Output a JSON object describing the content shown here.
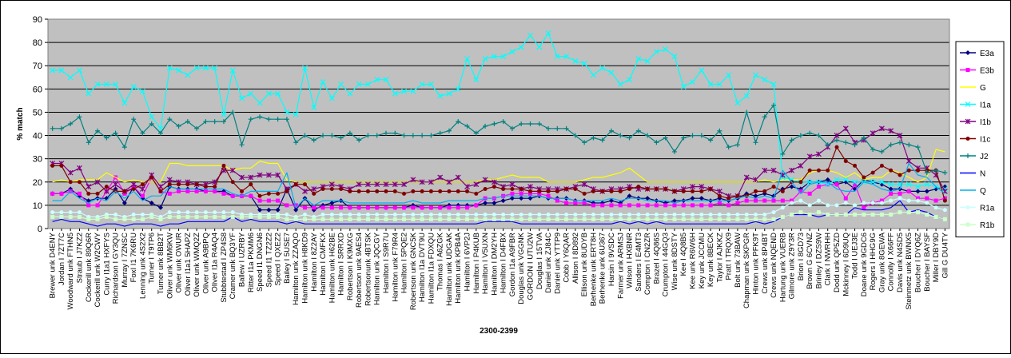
{
  "chart_data": {
    "type": "line",
    "xlabel": "2300-2399",
    "ylabel": "% match",
    "ylim": [
      0,
      90
    ],
    "yticks": [
      "0",
      "10",
      "20",
      "30",
      "40",
      "50",
      "60",
      "70",
      "80",
      "90"
    ],
    "grid": true,
    "legend_position": "right",
    "plot_background": "#c0c0c0",
    "categories": [
      "Brewer unk D4ENY",
      "Jordan I 7ZT7C",
      "Woodward unk FTHN5",
      "Straub I J7KZ2",
      "Cockerill unk 89Q6R",
      "Cockerill unk W2CWY",
      "Curry I1a1 HXFYS",
      "Richardson I GY3QU",
      "Murray I 7ZNSC",
      "FoxI I1 7K6RU",
      "Lenning unk 4S2X2",
      "Turner I T9TP6",
      "Turner unk 8BB2T",
      "Oliver unk WM6KW",
      "Oliver unk OWUR",
      "Oliver I1a1 5HAPZ",
      "Oliver unk WMQ2Z",
      "Oliver unk A9BPQ",
      "Oliver I1a R4AQ4",
      "Stubbtestad I ZP4S8",
      "Cramer unk BQ3YF",
      "Ballew I UZRBY",
      "Ritter I1a PKMM6",
      "Speed I1 DNGN6",
      "Speed I1 TZ2Z2",
      "Speed I QXEZ2",
      "Bailey I 5USE7",
      "Hamilton unk ZZAQO",
      "Hamilton unk H8KD9",
      "Hamilton I 8Z2AY",
      "Hamilton I CMFKX",
      "Hamilton unk H62BE",
      "Hamilton I SRRXD",
      "Robertson I K9MXG",
      "Robertson unk 9AES4",
      "Robertsonunk 4BTSK",
      "Hamilton unk JQCGY",
      "Hamilton I S9R7U",
      "Hamilton unk F79R4",
      "Hamilton I 5PQE2",
      "Robertson unk GNC5K",
      "Hamilton I1a DVT9U",
      "Hamilton I1a FDXQU",
      "Thomas I A6ZGK",
      "Hamilton unk UDGAK",
      "Hamilton unk KPB4A",
      "Hamilton I 6VP2J",
      "Hamilton I P4KUB",
      "Hamilton I V5UXN",
      "Hamilton I DM2YH",
      "Hamilton I D4FBX",
      "Gordon I1a A9FBR",
      "Douglas unk VGGNK",
      "GORDON I UTU2W",
      "Douglas I 15TVA",
      "Daniel unk ZJ84C",
      "Daniel unk YTTP9",
      "Cobb I Y6QAR",
      "Allison I 8D892",
      "Ellison unk 8UDYB",
      "Berhenke unk ERT8H",
      "Berhenke unk 6U367",
      "Harsin I 9VSDC",
      "Farmer unk ARMSJ",
      "Wilson I HXBNR",
      "Sanders I E4MT3",
      "Compton I CN2ZR",
      "Brazel I 4Q86S",
      "Crumpton I 44GQ3",
      "Wise unk 8DSTY",
      "Kee I 4Q8B5",
      "Kee unk R6W6H",
      "Key unk JCCMU",
      "Key unk 8BECK",
      "Taylor I AJKKZ",
      "Pratt I TRQX9",
      "Bolt unk 73BAW",
      "Chapman unk SKPGR",
      "Hinton unk PFK9T",
      "Crews unk 8P4BT",
      "Crews unk NQEND",
      "Hartung unk VUERB",
      "Gilmore unk Z9Y3R",
      "Brion I 8GD73",
      "Brown G 6CVNZ",
      "Brinley I DZS9W",
      "Clark I NWRHH",
      "Dodd unk QP5ZD",
      "Mckinney I 6D9UQ",
      "Todd I UEJ3E",
      "Doane unk 9GDC6",
      "Rogers I HHG9G",
      "Gray unk 8GEWA",
      "Connolly I X66FF",
      "Davis unk N4SD5",
      "Steinmetz unk BWNX5",
      "Boucher I DYQ6Z",
      "Boucher I BAYSF",
      "Miller I DBY9D",
      "Gill G DU4TY"
    ],
    "series": [
      {
        "name": "E3a",
        "color": "#000080",
        "marker": "diamond",
        "values": [
          15,
          15,
          17,
          14,
          12,
          13,
          13,
          17,
          11,
          18,
          13,
          11,
          9,
          18,
          17,
          17,
          17,
          16,
          16,
          16,
          14,
          14,
          14,
          8,
          8,
          8,
          17,
          8,
          13,
          8,
          10,
          11,
          12,
          9,
          9,
          9,
          9,
          9,
          9,
          9,
          10,
          9,
          9,
          9,
          10,
          10,
          10,
          10,
          11,
          11,
          12,
          13,
          13,
          13,
          14,
          13,
          13,
          13,
          12,
          12,
          11,
          11,
          12,
          11,
          14,
          13,
          13,
          12,
          11,
          12,
          12,
          13,
          13,
          12,
          13,
          12,
          13,
          15,
          14,
          15,
          14,
          17,
          18,
          17,
          20,
          20,
          21,
          19,
          20,
          17,
          21,
          20,
          19,
          17,
          17,
          16,
          16,
          16,
          17,
          18
        ]
      },
      {
        "name": "E3b",
        "color": "#ff00ff",
        "marker": "square",
        "values": [
          15,
          15,
          16,
          15,
          10,
          10,
          16,
          22,
          15,
          18,
          14,
          22,
          16,
          15,
          16,
          16,
          16,
          16,
          16,
          15,
          14,
          14,
          14,
          12,
          12,
          12,
          10,
          10,
          9,
          9,
          9,
          9,
          9,
          9,
          9,
          9,
          9,
          9,
          9,
          9,
          9,
          9,
          9,
          9,
          9,
          9,
          9,
          10,
          13,
          13,
          14,
          15,
          15,
          15,
          15,
          14,
          12,
          11,
          11,
          11,
          10,
          10,
          10,
          10,
          10,
          10,
          10,
          10,
          10,
          10,
          10,
          10,
          10,
          10,
          11,
          10,
          11,
          12,
          12,
          12,
          12,
          12,
          12,
          16,
          15,
          18,
          19,
          19,
          13,
          19,
          9,
          11,
          12,
          15,
          15,
          16,
          13,
          13,
          12,
          13
        ]
      },
      {
        "name": "G",
        "color": "#ffff00",
        "marker": "none",
        "values": [
          20,
          21,
          20,
          21,
          21,
          21,
          24,
          22,
          20,
          21,
          20,
          20,
          20,
          28,
          28,
          27,
          27,
          27,
          27,
          27,
          25,
          26,
          26,
          29,
          28,
          28,
          21,
          20,
          20,
          20,
          20,
          20,
          20,
          20,
          20,
          20,
          20,
          20,
          20,
          20,
          20,
          20,
          20,
          20,
          20,
          20,
          20,
          20,
          21,
          21,
          22,
          23,
          22,
          22,
          22,
          20,
          20,
          20,
          20,
          21,
          22,
          22,
          23,
          24,
          26,
          23,
          20,
          20,
          20,
          20,
          20,
          20,
          20,
          20,
          20,
          20,
          20,
          20,
          20,
          21,
          20,
          21,
          21,
          21,
          24,
          25,
          25,
          24,
          22,
          24,
          21,
          22,
          22,
          25,
          24,
          22,
          20,
          22,
          34,
          33
        ]
      },
      {
        "name": "I1a",
        "color": "#00ffff",
        "marker": "x",
        "values": [
          68,
          68,
          65,
          68,
          58,
          62,
          62,
          62,
          54,
          61,
          59,
          48,
          43,
          69,
          68,
          66,
          69,
          69,
          69,
          49,
          68,
          56,
          58,
          54,
          58,
          58,
          50,
          49,
          69,
          52,
          63,
          56,
          62,
          58,
          62,
          62,
          64,
          64,
          58,
          59,
          59,
          62,
          62,
          57,
          58,
          60,
          73,
          64,
          73,
          74,
          74,
          76,
          78,
          83,
          78,
          84,
          74,
          74,
          72,
          71,
          66,
          69,
          67,
          62,
          64,
          73,
          72,
          76,
          77,
          74,
          61,
          63,
          68,
          62,
          62,
          66,
          54,
          57,
          66,
          64,
          62,
          22,
          21,
          20,
          20,
          20,
          19,
          21,
          21,
          20,
          20,
          20,
          20,
          19,
          19,
          19,
          18,
          19,
          18,
          17
        ]
      },
      {
        "name": "I1b",
        "color": "#800080",
        "marker": "star",
        "values": [
          28,
          28,
          24,
          26,
          18,
          20,
          16,
          19,
          16,
          19,
          17,
          23,
          18,
          21,
          20,
          20,
          19,
          19,
          20,
          25,
          25,
          22,
          22,
          23,
          23,
          23,
          17,
          19,
          16,
          17,
          18,
          19,
          18,
          17,
          19,
          19,
          19,
          19,
          19,
          19,
          21,
          20,
          20,
          22,
          20,
          22,
          18,
          19,
          21,
          20,
          18,
          19,
          17,
          18,
          17,
          17,
          17,
          17,
          18,
          19,
          17,
          16,
          17,
          17,
          18,
          17,
          17,
          17,
          17,
          16,
          17,
          18,
          18,
          17,
          16,
          14,
          14,
          22,
          21,
          25,
          25,
          23,
          25,
          27,
          31,
          32,
          35,
          40,
          43,
          37,
          38,
          41,
          43,
          42,
          40,
          29,
          26,
          26,
          23,
          16
        ]
      },
      {
        "name": "I1c",
        "color": "#800000",
        "marker": "circle",
        "values": [
          27,
          27,
          20,
          20,
          15,
          15,
          18,
          16,
          16,
          17,
          19,
          22,
          16,
          19,
          19,
          19,
          19,
          18,
          18,
          27,
          20,
          16,
          19,
          14,
          15,
          15,
          16,
          19,
          19,
          15,
          17,
          17,
          17,
          16,
          16,
          16,
          16,
          16,
          16,
          15,
          16,
          16,
          16,
          16,
          16,
          16,
          16,
          15,
          17,
          18,
          17,
          17,
          17,
          16,
          16,
          16,
          16,
          17,
          17,
          15,
          16,
          16,
          16,
          16,
          17,
          18,
          17,
          17,
          17,
          16,
          16,
          16,
          16,
          17,
          14,
          13,
          14,
          14,
          16,
          16,
          18,
          16,
          20,
          20,
          25,
          25,
          25,
          35,
          29,
          27,
          22,
          24,
          27,
          25,
          23,
          25,
          25,
          25,
          25,
          12
        ]
      },
      {
        "name": "J2",
        "color": "#008080",
        "marker": "plus",
        "values": [
          43,
          43,
          45,
          48,
          37,
          42,
          39,
          41,
          35,
          47,
          41,
          45,
          41,
          47,
          44,
          46,
          43,
          46,
          46,
          46,
          50,
          36,
          47,
          48,
          47,
          47,
          47,
          37,
          40,
          38,
          40,
          40,
          39,
          41,
          38,
          40,
          40,
          41,
          41,
          40,
          40,
          40,
          40,
          41,
          42,
          46,
          44,
          41,
          44,
          45,
          46,
          43,
          45,
          45,
          45,
          43,
          43,
          43,
          40,
          37,
          39,
          38,
          42,
          40,
          39,
          42,
          40,
          37,
          39,
          33,
          39,
          40,
          40,
          38,
          42,
          35,
          36,
          50,
          37,
          48,
          53,
          32,
          38,
          40,
          41,
          40,
          36,
          38,
          37,
          36,
          39,
          34,
          33,
          36,
          37,
          36,
          35,
          24,
          25,
          24
        ]
      },
      {
        "name": "N",
        "color": "#0000ff",
        "marker": "none",
        "values": [
          3,
          4,
          3,
          3,
          2,
          1,
          2,
          2,
          1,
          2,
          2,
          2,
          1,
          2,
          2,
          3,
          3,
          3,
          3,
          3,
          5,
          3,
          4,
          3,
          3,
          3,
          2,
          3,
          2,
          2,
          2,
          2,
          2,
          2,
          2,
          2,
          2,
          2,
          2,
          2,
          2,
          2,
          2,
          2,
          2,
          2,
          2,
          2,
          3,
          3,
          3,
          3,
          2,
          2,
          2,
          2,
          2,
          2,
          2,
          2,
          2,
          2,
          2,
          3,
          2,
          3,
          2,
          3,
          2,
          2,
          2,
          2,
          2,
          2,
          2,
          2,
          2,
          2,
          3,
          2,
          3,
          5,
          6,
          6,
          6,
          5,
          6,
          6,
          6,
          9,
          8,
          8,
          8,
          9,
          12,
          7,
          8,
          7,
          5,
          4
        ]
      },
      {
        "name": "Q",
        "color": "#00b0f0",
        "marker": "none",
        "values": [
          12,
          12,
          16,
          13,
          11,
          13,
          12,
          16,
          13,
          16,
          12,
          14,
          14,
          18,
          17,
          17,
          17,
          17,
          17,
          17,
          15,
          14,
          16,
          16,
          16,
          16,
          24,
          9,
          13,
          10,
          12,
          12,
          12,
          11,
          11,
          11,
          11,
          11,
          11,
          11,
          12,
          11,
          11,
          11,
          12,
          12,
          12,
          12,
          13,
          13,
          14,
          14,
          14,
          14,
          14,
          13,
          13,
          13,
          12,
          12,
          12,
          12,
          13,
          12,
          13,
          13,
          12,
          12,
          12,
          11,
          12,
          12,
          12,
          12,
          12,
          12,
          13,
          14,
          13,
          14,
          13,
          25,
          20,
          15,
          19,
          20,
          20,
          17,
          16,
          16,
          20,
          19,
          17,
          16,
          17,
          28,
          23,
          22,
          18,
          15
        ]
      },
      {
        "name": "R1a",
        "color": "#ccffff",
        "marker": "circle",
        "values": [
          7,
          7,
          7,
          7,
          5,
          5,
          6,
          6,
          5,
          6,
          6,
          6,
          5,
          7,
          7,
          7,
          7,
          7,
          7,
          7,
          7,
          6,
          6,
          6,
          6,
          6,
          6,
          5,
          6,
          5,
          6,
          6,
          6,
          6,
          6,
          6,
          6,
          6,
          6,
          6,
          6,
          6,
          6,
          6,
          6,
          6,
          6,
          6,
          6,
          6,
          6,
          6,
          6,
          6,
          6,
          6,
          6,
          6,
          6,
          6,
          6,
          6,
          6,
          6,
          6,
          6,
          6,
          6,
          6,
          6,
          6,
          6,
          6,
          6,
          6,
          6,
          6,
          6,
          6,
          6,
          7,
          9,
          11,
          12,
          10,
          12,
          10,
          10,
          11,
          10,
          11,
          11,
          11,
          12,
          13,
          12,
          12,
          11,
          9,
          8
        ]
      },
      {
        "name": "R1b",
        "color": "#ccffcc",
        "marker": "square",
        "values": [
          5,
          5,
          5,
          5,
          4,
          4,
          5,
          4,
          4,
          4,
          4,
          5,
          4,
          5,
          5,
          5,
          5,
          5,
          5,
          5,
          5,
          5,
          5,
          5,
          5,
          5,
          4,
          4,
          4,
          4,
          4,
          4,
          4,
          4,
          4,
          4,
          4,
          4,
          4,
          4,
          4,
          4,
          4,
          4,
          4,
          4,
          4,
          4,
          4,
          4,
          4,
          4,
          4,
          4,
          4,
          4,
          4,
          4,
          4,
          4,
          4,
          4,
          4,
          4,
          4,
          4,
          4,
          4,
          4,
          4,
          4,
          4,
          4,
          4,
          4,
          4,
          4,
          4,
          4,
          4,
          4,
          5,
          6,
          7,
          6,
          7,
          6,
          6,
          6,
          6,
          6,
          6,
          6,
          6,
          7,
          7,
          7,
          6,
          5,
          4
        ]
      }
    ]
  }
}
